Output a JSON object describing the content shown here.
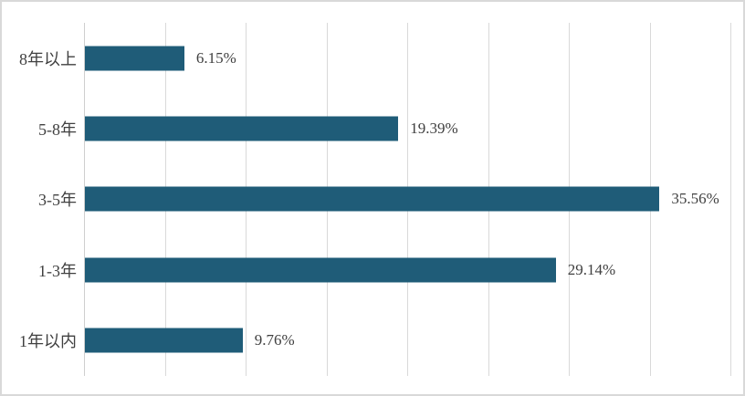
{
  "chart_data": {
    "type": "bar",
    "orientation": "horizontal",
    "title": "",
    "xlabel": "",
    "ylabel": "",
    "categories": [
      "8年以上",
      "5-8年",
      "3-5年",
      "1-3年",
      "1年以内"
    ],
    "values": [
      6.15,
      19.39,
      35.56,
      29.14,
      9.76
    ],
    "value_labels": [
      "6.15%",
      "19.39%",
      "35.56%",
      "29.14%",
      "9.76%"
    ],
    "xlim": [
      0,
      40
    ],
    "gridline_step": 5,
    "grid": true,
    "legend": false,
    "colors": {
      "bar": "#1F5C78",
      "gridline": "#D9D9D9",
      "axis_line": "#CFCFCF",
      "border": "#D9D9D9",
      "text": "#404040",
      "background": "#FFFFFF"
    }
  }
}
